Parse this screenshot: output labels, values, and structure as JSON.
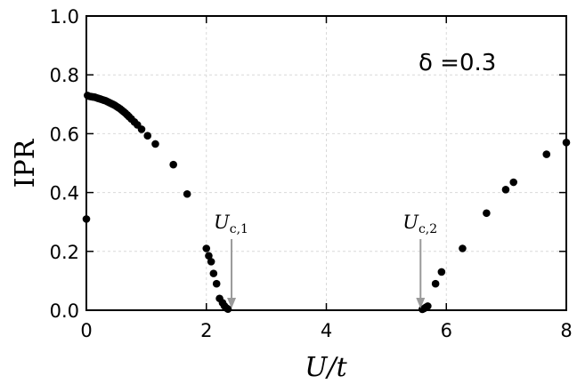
{
  "chart_data": {
    "type": "scatter",
    "xlabel": "U/t",
    "ylabel": "IPR",
    "xlim": [
      0,
      8
    ],
    "ylim": [
      0,
      1
    ],
    "xticks": [
      0,
      2,
      4,
      6,
      8
    ],
    "yticks": [
      0.0,
      0.2,
      0.4,
      0.6,
      0.8,
      1.0
    ],
    "grid": true,
    "annotation_text": "δ =0.3",
    "series": [
      {
        "color": "#000000",
        "x": [
          0.0,
          0.02,
          0.05,
          0.08,
          0.11,
          0.14,
          0.17,
          0.2,
          0.23,
          0.26,
          0.29,
          0.32,
          0.35,
          0.38,
          0.41,
          0.44,
          0.47,
          0.5,
          0.53,
          0.56,
          0.59,
          0.62,
          0.65,
          0.68,
          0.71,
          0.75,
          0.8,
          0.85,
          0.92,
          1.02,
          1.15,
          1.45,
          1.68,
          2.0,
          2.04,
          2.08,
          2.12,
          2.17,
          2.22,
          2.27,
          2.3,
          2.33,
          2.36,
          5.6,
          5.63,
          5.66,
          5.69,
          5.82,
          5.92,
          6.27,
          6.67,
          6.99,
          7.12,
          7.67,
          8.0
        ],
        "y": [
          0.31,
          0.73,
          0.727,
          0.726,
          0.725,
          0.724,
          0.722,
          0.72,
          0.718,
          0.716,
          0.714,
          0.712,
          0.709,
          0.706,
          0.703,
          0.7,
          0.697,
          0.693,
          0.689,
          0.685,
          0.68,
          0.675,
          0.67,
          0.664,
          0.658,
          0.65,
          0.64,
          0.63,
          0.615,
          0.593,
          0.565,
          0.495,
          0.395,
          0.21,
          0.185,
          0.165,
          0.125,
          0.09,
          0.04,
          0.025,
          0.015,
          0.008,
          0.004,
          0.003,
          0.006,
          0.01,
          0.014,
          0.09,
          0.13,
          0.21,
          0.33,
          0.41,
          0.435,
          0.53,
          0.57
        ]
      }
    ],
    "markers": [
      {
        "label": "U",
        "subscript": "c,1",
        "x": 2.42,
        "y_text": 0.26
      },
      {
        "label": "U",
        "subscript": "c,2",
        "x": 5.57,
        "y_text": 0.26
      }
    ]
  }
}
